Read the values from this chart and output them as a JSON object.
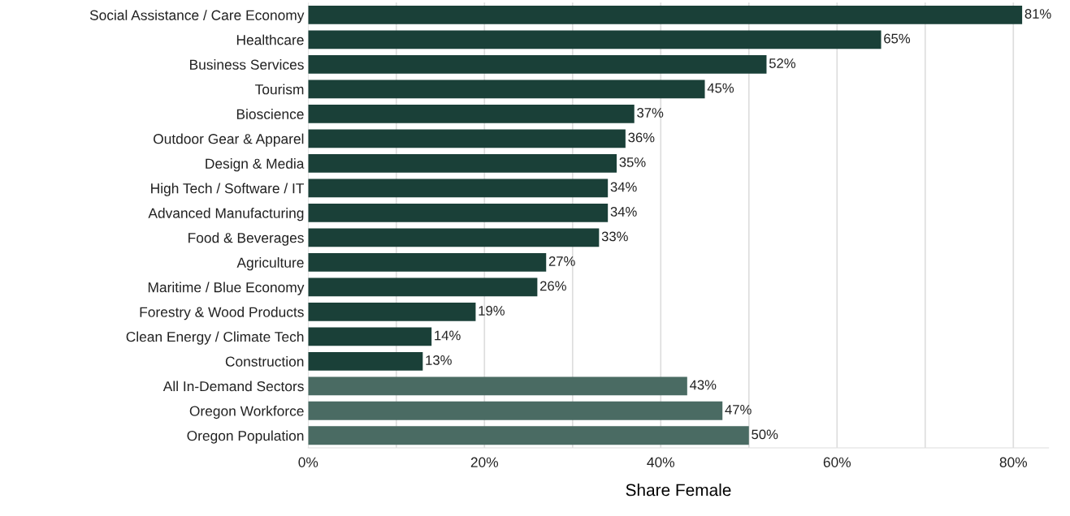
{
  "chart_data": {
    "type": "bar",
    "orientation": "horizontal",
    "xlabel": "Share Female",
    "categories": [
      "Social Assistance / Care Economy",
      "Healthcare",
      "Business Services",
      "Tourism",
      "Bioscience",
      "Outdoor Gear & Apparel",
      "Design & Media",
      "High Tech / Software / IT",
      "Advanced Manufacturing",
      "Food & Beverages",
      "Agriculture",
      "Maritime / Blue Economy",
      "Forestry & Wood Products",
      "Clean Energy / Climate Tech",
      "Construction",
      "All In-Demand Sectors",
      "Oregon Workforce",
      "Oregon Population"
    ],
    "values": [
      81,
      65,
      52,
      45,
      37,
      36,
      35,
      34,
      34,
      33,
      27,
      26,
      19,
      14,
      13,
      43,
      47,
      50
    ],
    "value_labels": [
      "81%",
      "65%",
      "52%",
      "45%",
      "37%",
      "36%",
      "35%",
      "34%",
      "34%",
      "33%",
      "27%",
      "26%",
      "19%",
      "14%",
      "13%",
      "43%",
      "47%",
      "50%"
    ],
    "colors": [
      "#1a4038",
      "#1a4038",
      "#1a4038",
      "#1a4038",
      "#1a4038",
      "#1a4038",
      "#1a4038",
      "#1a4038",
      "#1a4038",
      "#1a4038",
      "#1a4038",
      "#1a4038",
      "#1a4038",
      "#1a4038",
      "#1a4038",
      "#4a6b63",
      "#4a6b63",
      "#4a6b63"
    ],
    "xlim": [
      0,
      84
    ],
    "xticks": [
      {
        "value": 0,
        "label": "0%"
      },
      {
        "value": 10,
        "label": null
      },
      {
        "value": 20,
        "label": "20%"
      },
      {
        "value": 30,
        "label": null
      },
      {
        "value": 40,
        "label": "40%"
      },
      {
        "value": 50,
        "label": null
      },
      {
        "value": 60,
        "label": "60%"
      },
      {
        "value": 70,
        "label": null
      },
      {
        "value": 80,
        "label": "80%"
      }
    ],
    "grid": "x",
    "legend": false
  }
}
